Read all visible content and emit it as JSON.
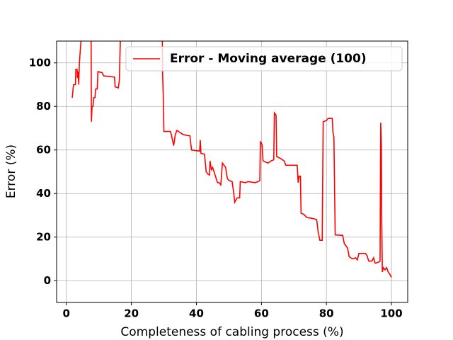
{
  "chart_data": {
    "type": "line",
    "x_label": "Completeness of cabling process (%)",
    "y_label": "Error (%)",
    "x": [
      1.8,
      2.2,
      2.8,
      2.9,
      3.3,
      3.4,
      3.6,
      3.8,
      4,
      4.5,
      4.8,
      7.6,
      7.7,
      7.9,
      8.2,
      8.4,
      8.8,
      9,
      9.5,
      9.7,
      11,
      11.5,
      14.8,
      15,
      16,
      16.3,
      16.6,
      17,
      29.5,
      29.6,
      29.8,
      30,
      32,
      32.3,
      33,
      33.5,
      34,
      35,
      36,
      38,
      38.5,
      41,
      41.2,
      41.4,
      42.5,
      43,
      43.5,
      44,
      44.2,
      44.6,
      45,
      46.5,
      47,
      47.5,
      48,
      49,
      49.5,
      50,
      51,
      51.5,
      51.8,
      52.5,
      53.3,
      53.5,
      55,
      56,
      58,
      59,
      59.5,
      59.7,
      60.2,
      60.5,
      62,
      63,
      63.8,
      64,
      64.5,
      64.7,
      66,
      67,
      67.5,
      70,
      71,
      71.3,
      71.6,
      72,
      72.2,
      73,
      74,
      76,
      77,
      77.5,
      78,
      78.7,
      79,
      80,
      80.5,
      81.8,
      82,
      82.3,
      82.5,
      82.7,
      85,
      85.5,
      86.5,
      87,
      88,
      89,
      89.5,
      90,
      92,
      92.5,
      93,
      94,
      94.5,
      95,
      96,
      96.5,
      96.7,
      96.9,
      97,
      97.2,
      97.5,
      98,
      98.5,
      99,
      99.5,
      100
    ],
    "series": [
      {
        "name": "Error - Moving average (100)",
        "color": "#ff0000",
        "values": [
          84,
          90,
          90,
          97,
          97,
          93,
          96,
          90,
          100,
          110,
          115,
          115,
          73,
          80,
          80,
          84,
          84,
          88,
          88,
          96,
          95.5,
          94,
          93.5,
          89,
          88.5,
          92,
          110,
          115,
          115,
          95,
          85,
          68.5,
          68.5,
          67,
          62,
          67,
          69,
          68,
          67,
          66.5,
          60,
          59.5,
          64.5,
          58.5,
          58,
          50,
          49,
          48.5,
          55,
          51,
          52,
          45,
          45,
          44,
          54,
          52,
          47,
          46,
          45.5,
          40,
          36,
          38,
          38,
          45.5,
          45,
          45.5,
          45,
          45.5,
          46,
          64,
          62.5,
          55,
          54,
          55,
          55.5,
          77,
          76,
          57,
          56,
          55,
          53,
          53,
          53,
          45,
          48,
          48,
          31,
          30.5,
          29,
          28.5,
          28,
          22,
          18.5,
          18.5,
          73,
          73.5,
          74.5,
          74.5,
          68,
          66,
          43,
          21,
          20.8,
          17,
          15,
          11,
          10,
          10.5,
          9.5,
          12.5,
          12.5,
          11.5,
          9,
          9,
          10.5,
          8,
          8.5,
          9,
          72.5,
          62,
          30,
          4,
          6,
          5,
          6,
          4,
          3,
          1.5
        ]
      }
    ],
    "xlim": [
      -3,
      105
    ],
    "ylim": [
      -10,
      110
    ],
    "xticks": [
      0,
      20,
      40,
      60,
      80,
      100
    ],
    "yticks": [
      0,
      20,
      40,
      60,
      80,
      100
    ],
    "grid": true,
    "legend": "upper right"
  }
}
